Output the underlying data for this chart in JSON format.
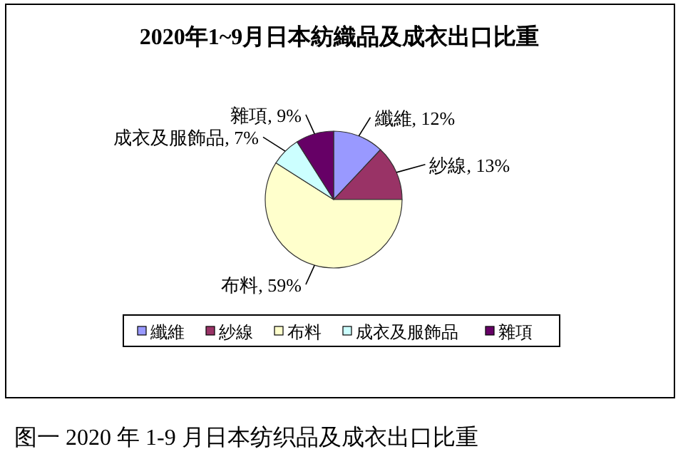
{
  "chart_data": {
    "type": "pie",
    "title": "2020年1~9月日本紡織品及成衣出口比重",
    "categories": [
      "纖維",
      "紗線",
      "布料",
      "成衣及服飾品",
      "雜項"
    ],
    "values": [
      12,
      13,
      59,
      7,
      9
    ],
    "colors": [
      "#9999ff",
      "#993366",
      "#ffffcc",
      "#ccffff",
      "#660066"
    ],
    "value_labels": [
      "纖維, 12%",
      "紗線, 13%",
      "布料, 59%",
      "成衣及服飾品, 7%",
      "雜項, 9%"
    ],
    "legend": "bottom",
    "annotations": [
      "图一 2020 年 1-9 月日本纺织品及成衣出口比重"
    ]
  }
}
